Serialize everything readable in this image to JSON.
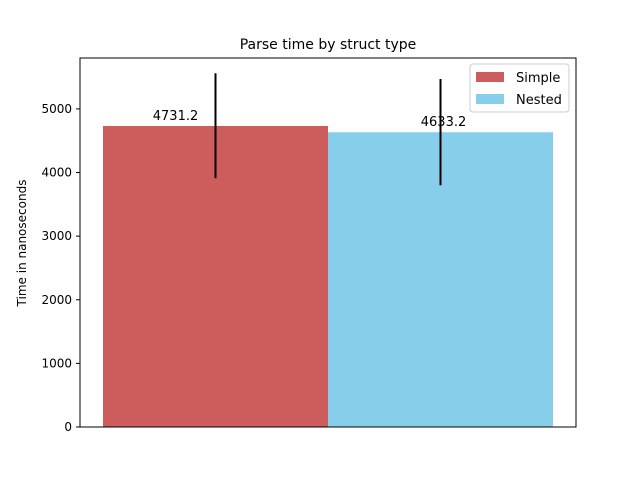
{
  "chart_data": {
    "type": "bar",
    "title": "Parse time by struct type",
    "xlabel": "",
    "ylabel": "Time in nanoseconds",
    "ylim": [
      0,
      5800
    ],
    "yticks": [
      0,
      1000,
      2000,
      3000,
      4000,
      5000
    ],
    "grid": false,
    "legend_position": "top-right",
    "series": [
      {
        "name": "Simple",
        "value": 4731.2,
        "error_low": 3910,
        "error_high": 5560,
        "label": "4731.2",
        "color": "#cd5c5c"
      },
      {
        "name": "Nested",
        "value": 4633.2,
        "error_low": 3800,
        "error_high": 5470,
        "label": "4633.2",
        "color": "#87ceeb"
      }
    ]
  }
}
